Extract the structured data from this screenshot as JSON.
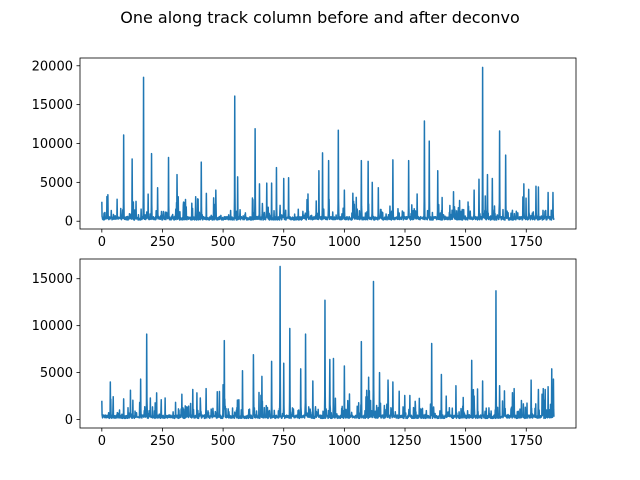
{
  "figure": {
    "suptitle": "One along track column before and after deconvo"
  },
  "chart_data": [
    {
      "type": "line",
      "title": "",
      "xlabel": "",
      "ylabel": "",
      "xlim": [
        -90,
        1955
      ],
      "ylim": [
        -1000,
        21000
      ],
      "xticks": [
        0,
        250,
        500,
        750,
        1000,
        1250,
        1500,
        1750
      ],
      "xtick_labels": [
        "0",
        "250",
        "500",
        "750",
        "1000",
        "1250",
        "1500",
        "1750"
      ],
      "yticks": [
        0,
        5000,
        10000,
        15000,
        20000
      ],
      "ytick_labels": [
        "0",
        "5000",
        "10000",
        "15000",
        "20000"
      ],
      "grid": false,
      "color": "#1f77b4",
      "series": [
        {
          "n_points": 1865,
          "baseline": 500,
          "peaks": [
            {
              "x": 0,
              "y": 2500
            },
            {
              "x": 25,
              "y": 3400
            },
            {
              "x": 90,
              "y": 11100
            },
            {
              "x": 125,
              "y": 8000
            },
            {
              "x": 172,
              "y": 18500
            },
            {
              "x": 205,
              "y": 8700
            },
            {
              "x": 230,
              "y": 4300
            },
            {
              "x": 275,
              "y": 8200
            },
            {
              "x": 310,
              "y": 6000
            },
            {
              "x": 345,
              "y": 2800
            },
            {
              "x": 410,
              "y": 7600
            },
            {
              "x": 470,
              "y": 4000
            },
            {
              "x": 548,
              "y": 16100
            },
            {
              "x": 560,
              "y": 5700
            },
            {
              "x": 632,
              "y": 11900
            },
            {
              "x": 650,
              "y": 4800
            },
            {
              "x": 680,
              "y": 4900
            },
            {
              "x": 700,
              "y": 4900
            },
            {
              "x": 720,
              "y": 6900
            },
            {
              "x": 750,
              "y": 5500
            },
            {
              "x": 770,
              "y": 5600
            },
            {
              "x": 850,
              "y": 3500
            },
            {
              "x": 895,
              "y": 6500
            },
            {
              "x": 910,
              "y": 8800
            },
            {
              "x": 935,
              "y": 7800
            },
            {
              "x": 975,
              "y": 11700
            },
            {
              "x": 1000,
              "y": 4000
            },
            {
              "x": 1035,
              "y": 3600
            },
            {
              "x": 1070,
              "y": 7800
            },
            {
              "x": 1098,
              "y": 7700
            },
            {
              "x": 1115,
              "y": 5000
            },
            {
              "x": 1140,
              "y": 4300
            },
            {
              "x": 1200,
              "y": 7900
            },
            {
              "x": 1265,
              "y": 7800
            },
            {
              "x": 1300,
              "y": 3500
            },
            {
              "x": 1330,
              "y": 12900
            },
            {
              "x": 1350,
              "y": 10300
            },
            {
              "x": 1385,
              "y": 6500
            },
            {
              "x": 1450,
              "y": 3800
            },
            {
              "x": 1535,
              "y": 4000
            },
            {
              "x": 1555,
              "y": 5400
            },
            {
              "x": 1570,
              "y": 19800
            },
            {
              "x": 1590,
              "y": 6000
            },
            {
              "x": 1610,
              "y": 5500
            },
            {
              "x": 1640,
              "y": 11600
            },
            {
              "x": 1665,
              "y": 8500
            },
            {
              "x": 1740,
              "y": 4800
            },
            {
              "x": 1760,
              "y": 4100
            },
            {
              "x": 1790,
              "y": 4500
            },
            {
              "x": 1800,
              "y": 4400
            },
            {
              "x": 1840,
              "y": 3700
            },
            {
              "x": 1860,
              "y": 3700
            }
          ]
        }
      ]
    },
    {
      "type": "line",
      "title": "",
      "xlabel": "",
      "ylabel": "",
      "xlim": [
        -90,
        1955
      ],
      "ylim": [
        -900,
        17100
      ],
      "xticks": [
        0,
        250,
        500,
        750,
        1000,
        1250,
        1500,
        1750
      ],
      "xtick_labels": [
        "0",
        "250",
        "500",
        "750",
        "1000",
        "1250",
        "1500",
        "1750"
      ],
      "yticks": [
        0,
        5000,
        10000,
        15000
      ],
      "ytick_labels": [
        "0",
        "5000",
        "10000",
        "15000"
      ],
      "grid": false,
      "color": "#1f77b4",
      "series": [
        {
          "n_points": 1865,
          "baseline": 400,
          "peaks": [
            {
              "x": 0,
              "y": 2000
            },
            {
              "x": 35,
              "y": 4000
            },
            {
              "x": 90,
              "y": 2200
            },
            {
              "x": 160,
              "y": 4300
            },
            {
              "x": 185,
              "y": 9100
            },
            {
              "x": 200,
              "y": 2300
            },
            {
              "x": 330,
              "y": 2700
            },
            {
              "x": 375,
              "y": 3200
            },
            {
              "x": 430,
              "y": 3300
            },
            {
              "x": 500,
              "y": 3700
            },
            {
              "x": 505,
              "y": 8400
            },
            {
              "x": 580,
              "y": 5200
            },
            {
              "x": 625,
              "y": 6900
            },
            {
              "x": 660,
              "y": 4600
            },
            {
              "x": 700,
              "y": 6200
            },
            {
              "x": 735,
              "y": 16300
            },
            {
              "x": 750,
              "y": 6000
            },
            {
              "x": 775,
              "y": 9700
            },
            {
              "x": 820,
              "y": 5400
            },
            {
              "x": 840,
              "y": 9100
            },
            {
              "x": 870,
              "y": 4100
            },
            {
              "x": 920,
              "y": 12700
            },
            {
              "x": 940,
              "y": 6400
            },
            {
              "x": 955,
              "y": 6500
            },
            {
              "x": 1000,
              "y": 5700
            },
            {
              "x": 1070,
              "y": 8300
            },
            {
              "x": 1100,
              "y": 4500
            },
            {
              "x": 1120,
              "y": 14700
            },
            {
              "x": 1145,
              "y": 5000
            },
            {
              "x": 1180,
              "y": 4200
            },
            {
              "x": 1200,
              "y": 4000
            },
            {
              "x": 1360,
              "y": 8100
            },
            {
              "x": 1400,
              "y": 4800
            },
            {
              "x": 1460,
              "y": 3600
            },
            {
              "x": 1525,
              "y": 6300
            },
            {
              "x": 1570,
              "y": 4100
            },
            {
              "x": 1625,
              "y": 13700
            },
            {
              "x": 1640,
              "y": 3600
            },
            {
              "x": 1700,
              "y": 3300
            },
            {
              "x": 1770,
              "y": 4200
            },
            {
              "x": 1800,
              "y": 3200
            },
            {
              "x": 1820,
              "y": 3300
            },
            {
              "x": 1840,
              "y": 3500
            },
            {
              "x": 1855,
              "y": 5400
            },
            {
              "x": 1862,
              "y": 4300
            }
          ]
        }
      ]
    }
  ]
}
